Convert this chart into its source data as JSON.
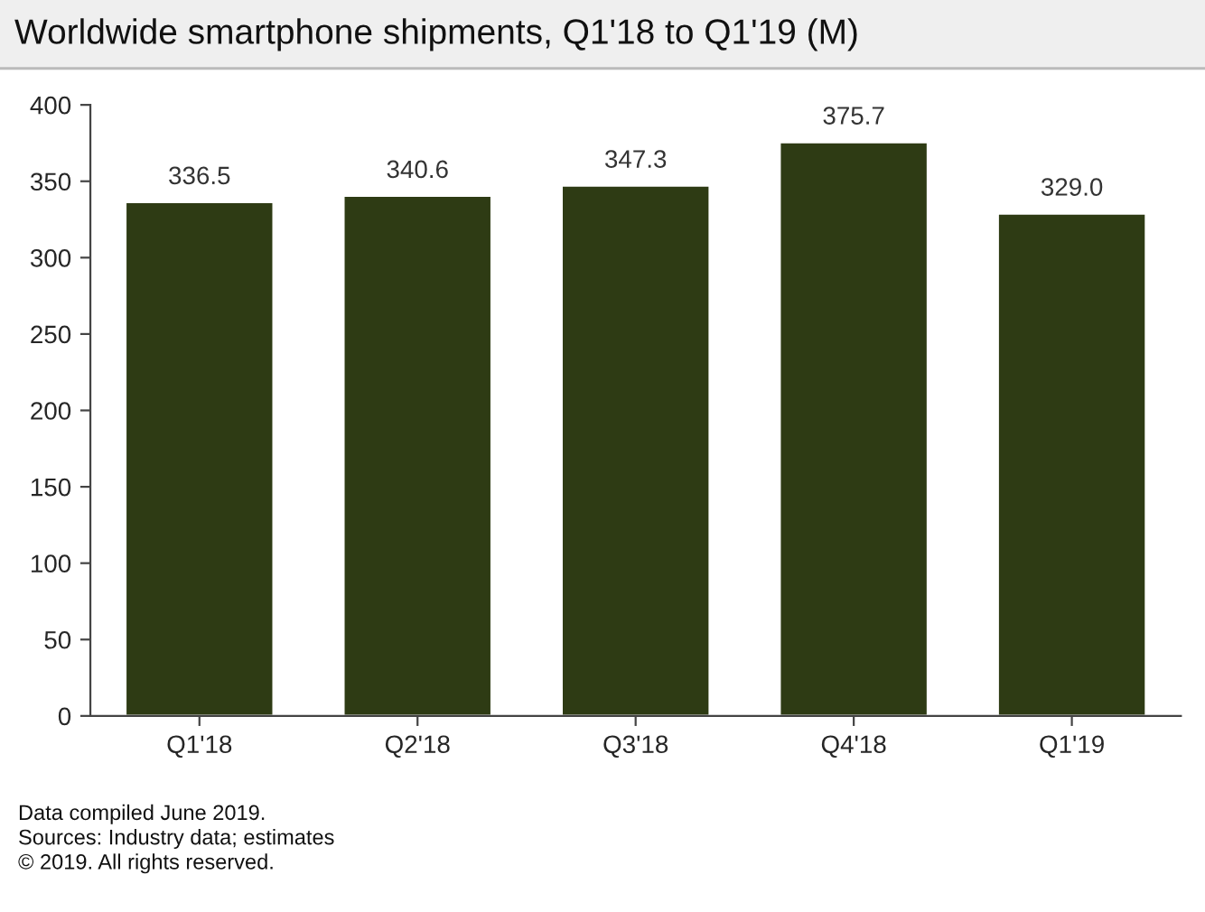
{
  "chart_data": {
    "type": "bar",
    "title": "Worldwide smartphone shipments, Q1'18 to Q1'19 (M)",
    "categories": [
      "Q1'18",
      "Q2'18",
      "Q3'18",
      "Q4'18",
      "Q1'19"
    ],
    "values": [
      336.5,
      340.6,
      347.3,
      375.7,
      329.0
    ],
    "value_labels": [
      "336.5",
      "340.6",
      "347.3",
      "375.7",
      "329.0"
    ],
    "color": "#2e3b14",
    "ylim": [
      0,
      400
    ],
    "yticks": [
      0,
      50,
      100,
      150,
      200,
      250,
      300,
      350,
      400
    ],
    "grid": false,
    "legend": false,
    "annotations": [
      "Data compiled June 2019.",
      "Sources: Industry data; estimates",
      "© 2019. All rights reserved."
    ]
  }
}
